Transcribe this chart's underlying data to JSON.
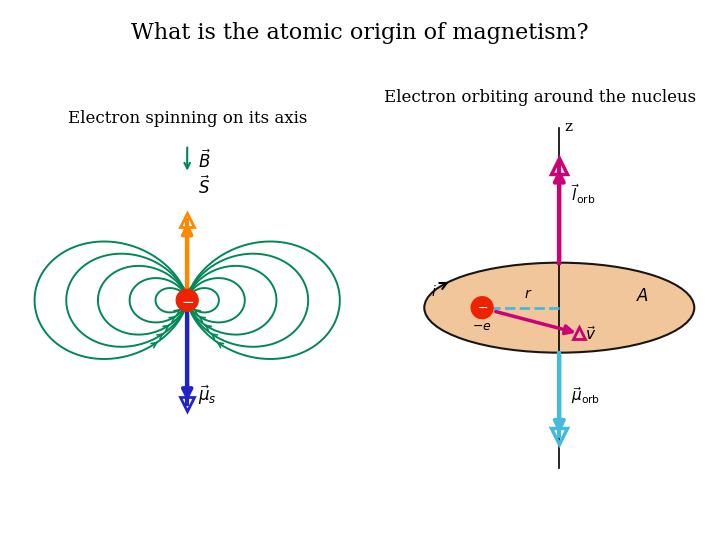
{
  "title": "What is the atomic origin of magnetism?",
  "title_fontsize": 16,
  "title_font": "serif",
  "left_label": "Electron spinning on its axis",
  "right_label": "Electron orbiting around the nucleus",
  "label_fontsize": 12,
  "bg_color": "#ffffff",
  "green": "#008855",
  "orange_arrow": "#FF8800",
  "blue_arrow": "#2222CC",
  "red_electron": "#EE2200",
  "pink": "#CC0077",
  "cyan": "#44BBDD",
  "peach": "#F0C090"
}
